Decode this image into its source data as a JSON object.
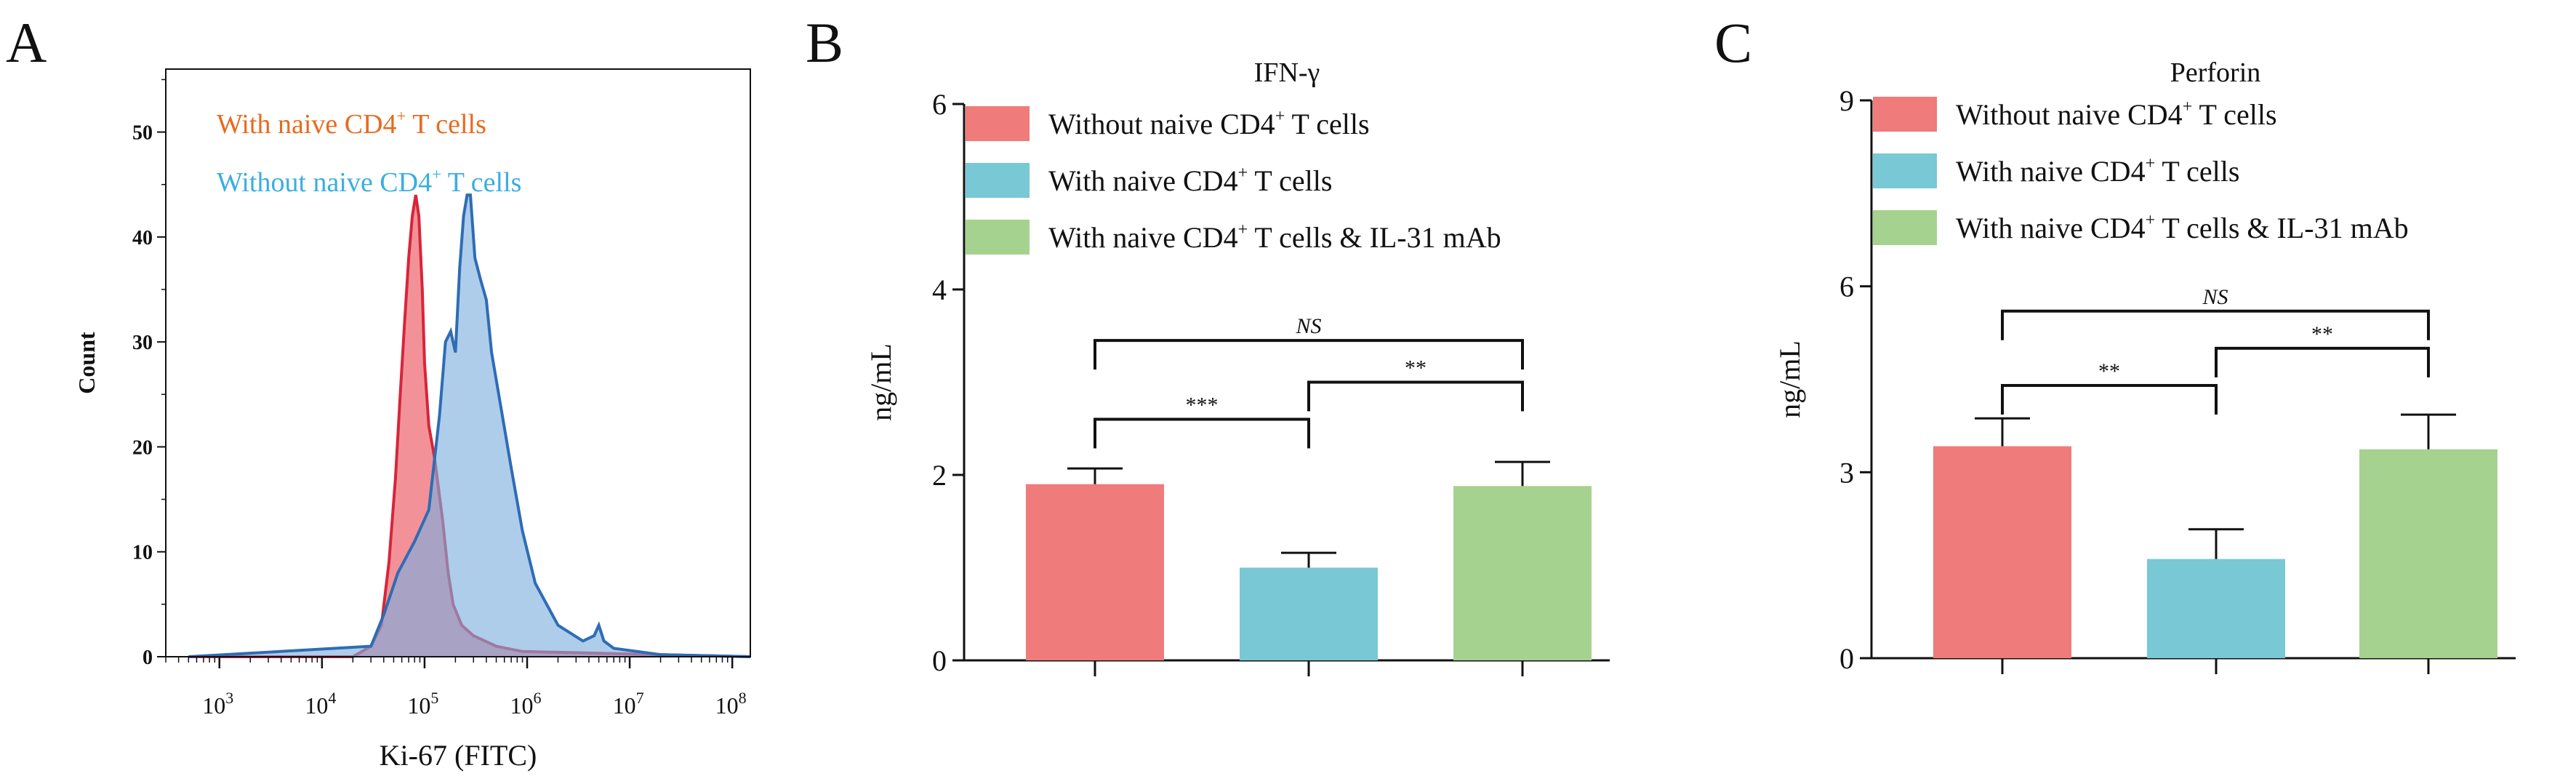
{
  "chart_data": [
    {
      "panel": "A",
      "type": "area",
      "xlabel": "Ki-67 (FITC)",
      "ylabel": "Count",
      "x_scale": "log10",
      "xlim": [
        300,
        150000000
      ],
      "x_tick_labels": [
        "10^3",
        "10^4",
        "10^5",
        "10^6",
        "10^7",
        "10^8"
      ],
      "ylim": [
        0,
        56
      ],
      "y_ticks": [
        0,
        10,
        20,
        30,
        40,
        50
      ],
      "legend": [
        {
          "text": "With naive CD4",
          "sup": "+",
          "tail": " T cells",
          "color": "#E86A1F"
        },
        {
          "text": "Without naive CD4",
          "sup": "+",
          "tail": " T cells",
          "color": "#3AAEE0"
        }
      ],
      "series": [
        {
          "color_fill": "#F07F86",
          "color_line": "#D7253A",
          "points": [
            [
              500,
              0
            ],
            [
              20000,
              0
            ],
            [
              30000,
              1
            ],
            [
              38000,
              3
            ],
            [
              45000,
              9
            ],
            [
              52000,
              17
            ],
            [
              58000,
              25
            ],
            [
              64000,
              32
            ],
            [
              70000,
              38
            ],
            [
              76000,
              42
            ],
            [
              82000,
              44
            ],
            [
              88000,
              42
            ],
            [
              95000,
              35
            ],
            [
              100000,
              28
            ],
            [
              110000,
              22
            ],
            [
              125000,
              19
            ],
            [
              150000,
              13
            ],
            [
              170000,
              8
            ],
            [
              190000,
              5
            ],
            [
              230000,
              3
            ],
            [
              300000,
              2
            ],
            [
              500000,
              1
            ],
            [
              900000,
              0.5
            ],
            [
              150000000,
              0
            ]
          ]
        },
        {
          "color_fill": "#7BAEDE",
          "color_line": "#2F6CB5",
          "points": [
            [
              500,
              0
            ],
            [
              30000,
              1
            ],
            [
              40000,
              4
            ],
            [
              55000,
              8
            ],
            [
              80000,
              11
            ],
            [
              110000,
              14
            ],
            [
              140000,
              23
            ],
            [
              160000,
              30
            ],
            [
              180000,
              31
            ],
            [
              200000,
              29
            ],
            [
              220000,
              37
            ],
            [
              240000,
              42
            ],
            [
              260000,
              44
            ],
            [
              280000,
              44
            ],
            [
              310000,
              38
            ],
            [
              350000,
              36
            ],
            [
              400000,
              34
            ],
            [
              450000,
              29
            ],
            [
              550000,
              24
            ],
            [
              700000,
              18
            ],
            [
              900000,
              12
            ],
            [
              1200000,
              7
            ],
            [
              2000000,
              3
            ],
            [
              3500000,
              1.5
            ],
            [
              4500000,
              2
            ],
            [
              5000000,
              3
            ],
            [
              5600000,
              1.5
            ],
            [
              7000000,
              0.8
            ],
            [
              20000000,
              0.2
            ],
            [
              150000000,
              0
            ]
          ]
        }
      ]
    },
    {
      "panel": "B",
      "type": "bar",
      "title": "IFN-γ",
      "ylabel": "ng/mL",
      "ylim": [
        0,
        6
      ],
      "y_ticks": [
        0,
        2,
        4,
        6
      ],
      "categories": [
        "Without naive CD4+ T cells",
        "With naive CD4+ T cells",
        "With naive CD4+ T cells & IL-31 mAb"
      ],
      "legend": [
        {
          "text": "Without naive CD4",
          "sup": "+",
          "tail": " T cells"
        },
        {
          "text": "With naive CD4",
          "sup": "+",
          "tail": " T cells"
        },
        {
          "text": "With naive CD4",
          "sup": "+",
          "tail": " T cells & IL-31 mAb"
        }
      ],
      "colors": [
        "#EF7B7B",
        "#78C8D6",
        "#A6D28F"
      ],
      "values": [
        1.9,
        1.0,
        1.88
      ],
      "errors": [
        0.17,
        0.16,
        0.26
      ],
      "significance": [
        {
          "from": 0,
          "to": 2,
          "label": "NS",
          "y": 3.45,
          "italic": true
        },
        {
          "from": 0,
          "to": 1,
          "label": "***",
          "y": 2.6,
          "italic": false
        },
        {
          "from": 1,
          "to": 2,
          "label": "**",
          "y": 3.0,
          "italic": false
        }
      ]
    },
    {
      "panel": "C",
      "type": "bar",
      "title": "Perforin",
      "ylabel": "ng/mL",
      "ylim": [
        0,
        9
      ],
      "y_ticks": [
        0,
        3,
        6,
        9
      ],
      "categories": [
        "Without naive CD4+ T cells",
        "With naive CD4+ T cells",
        "With naive CD4+ T cells & IL-31 mAb"
      ],
      "legend": [
        {
          "text": "Without naive CD4",
          "sup": "+",
          "tail": " T cells"
        },
        {
          "text": "With naive CD4",
          "sup": "+",
          "tail": " T cells"
        },
        {
          "text": "With naive CD4",
          "sup": "+",
          "tail": " T cells & IL-31 mAb"
        }
      ],
      "colors": [
        "#EF7B7B",
        "#78C8D6",
        "#A6D28F"
      ],
      "values": [
        3.42,
        1.6,
        3.37
      ],
      "errors": [
        0.45,
        0.48,
        0.56
      ],
      "significance": [
        {
          "from": 0,
          "to": 2,
          "label": "NS",
          "y": 5.6,
          "italic": true
        },
        {
          "from": 0,
          "to": 1,
          "label": "**",
          "y": 4.4,
          "italic": false
        },
        {
          "from": 1,
          "to": 2,
          "label": "**",
          "y": 5.0,
          "italic": false
        }
      ]
    }
  ]
}
